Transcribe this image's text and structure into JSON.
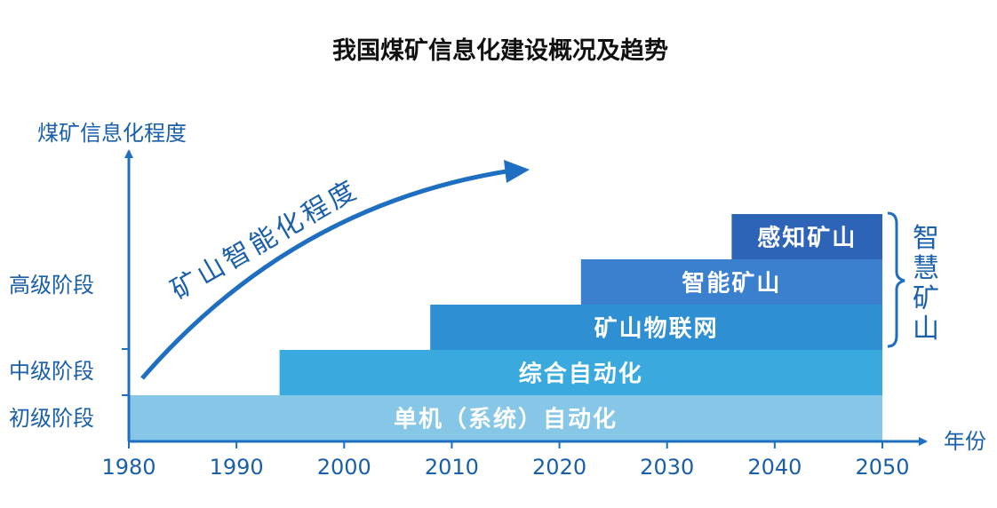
{
  "chart_data": {
    "type": "bar",
    "title": "我国煤矿信息化建设概况及趋势",
    "xlabel": "年份",
    "ylabel": "煤矿信息化程度",
    "xlim": [
      1980,
      2050
    ],
    "x_ticks": [
      "1980",
      "1990",
      "2000",
      "2010",
      "2020",
      "2030",
      "2040",
      "2050"
    ],
    "y_levels": [
      {
        "label": "初级阶段"
      },
      {
        "label": "中级阶段"
      },
      {
        "label": "高级阶段"
      }
    ],
    "series": [
      {
        "name": "单机（系统）自动化",
        "start": 1980,
        "end": 2050,
        "level": 0
      },
      {
        "name": "综合自动化",
        "start": 1994,
        "end": 2050,
        "level": 1
      },
      {
        "name": "矿山物联网",
        "start": 2008,
        "end": 2050,
        "level": 2
      },
      {
        "name": "智能矿山",
        "start": 2022,
        "end": 2050,
        "level": 3
      },
      {
        "name": "感知矿山",
        "start": 2036,
        "end": 2050,
        "level": 4
      }
    ],
    "annotations": {
      "trend_label": "矿山智能化程度",
      "bracket_label": "智慧矿山"
    },
    "colors": {
      "axis": "#1e6fc2",
      "text": "#1a5faa",
      "bars": [
        "#86c6e6",
        "#3aa9de",
        "#2f8fd3",
        "#3b7fcf",
        "#2e64b8"
      ],
      "bar_text": "#ffffff"
    }
  }
}
